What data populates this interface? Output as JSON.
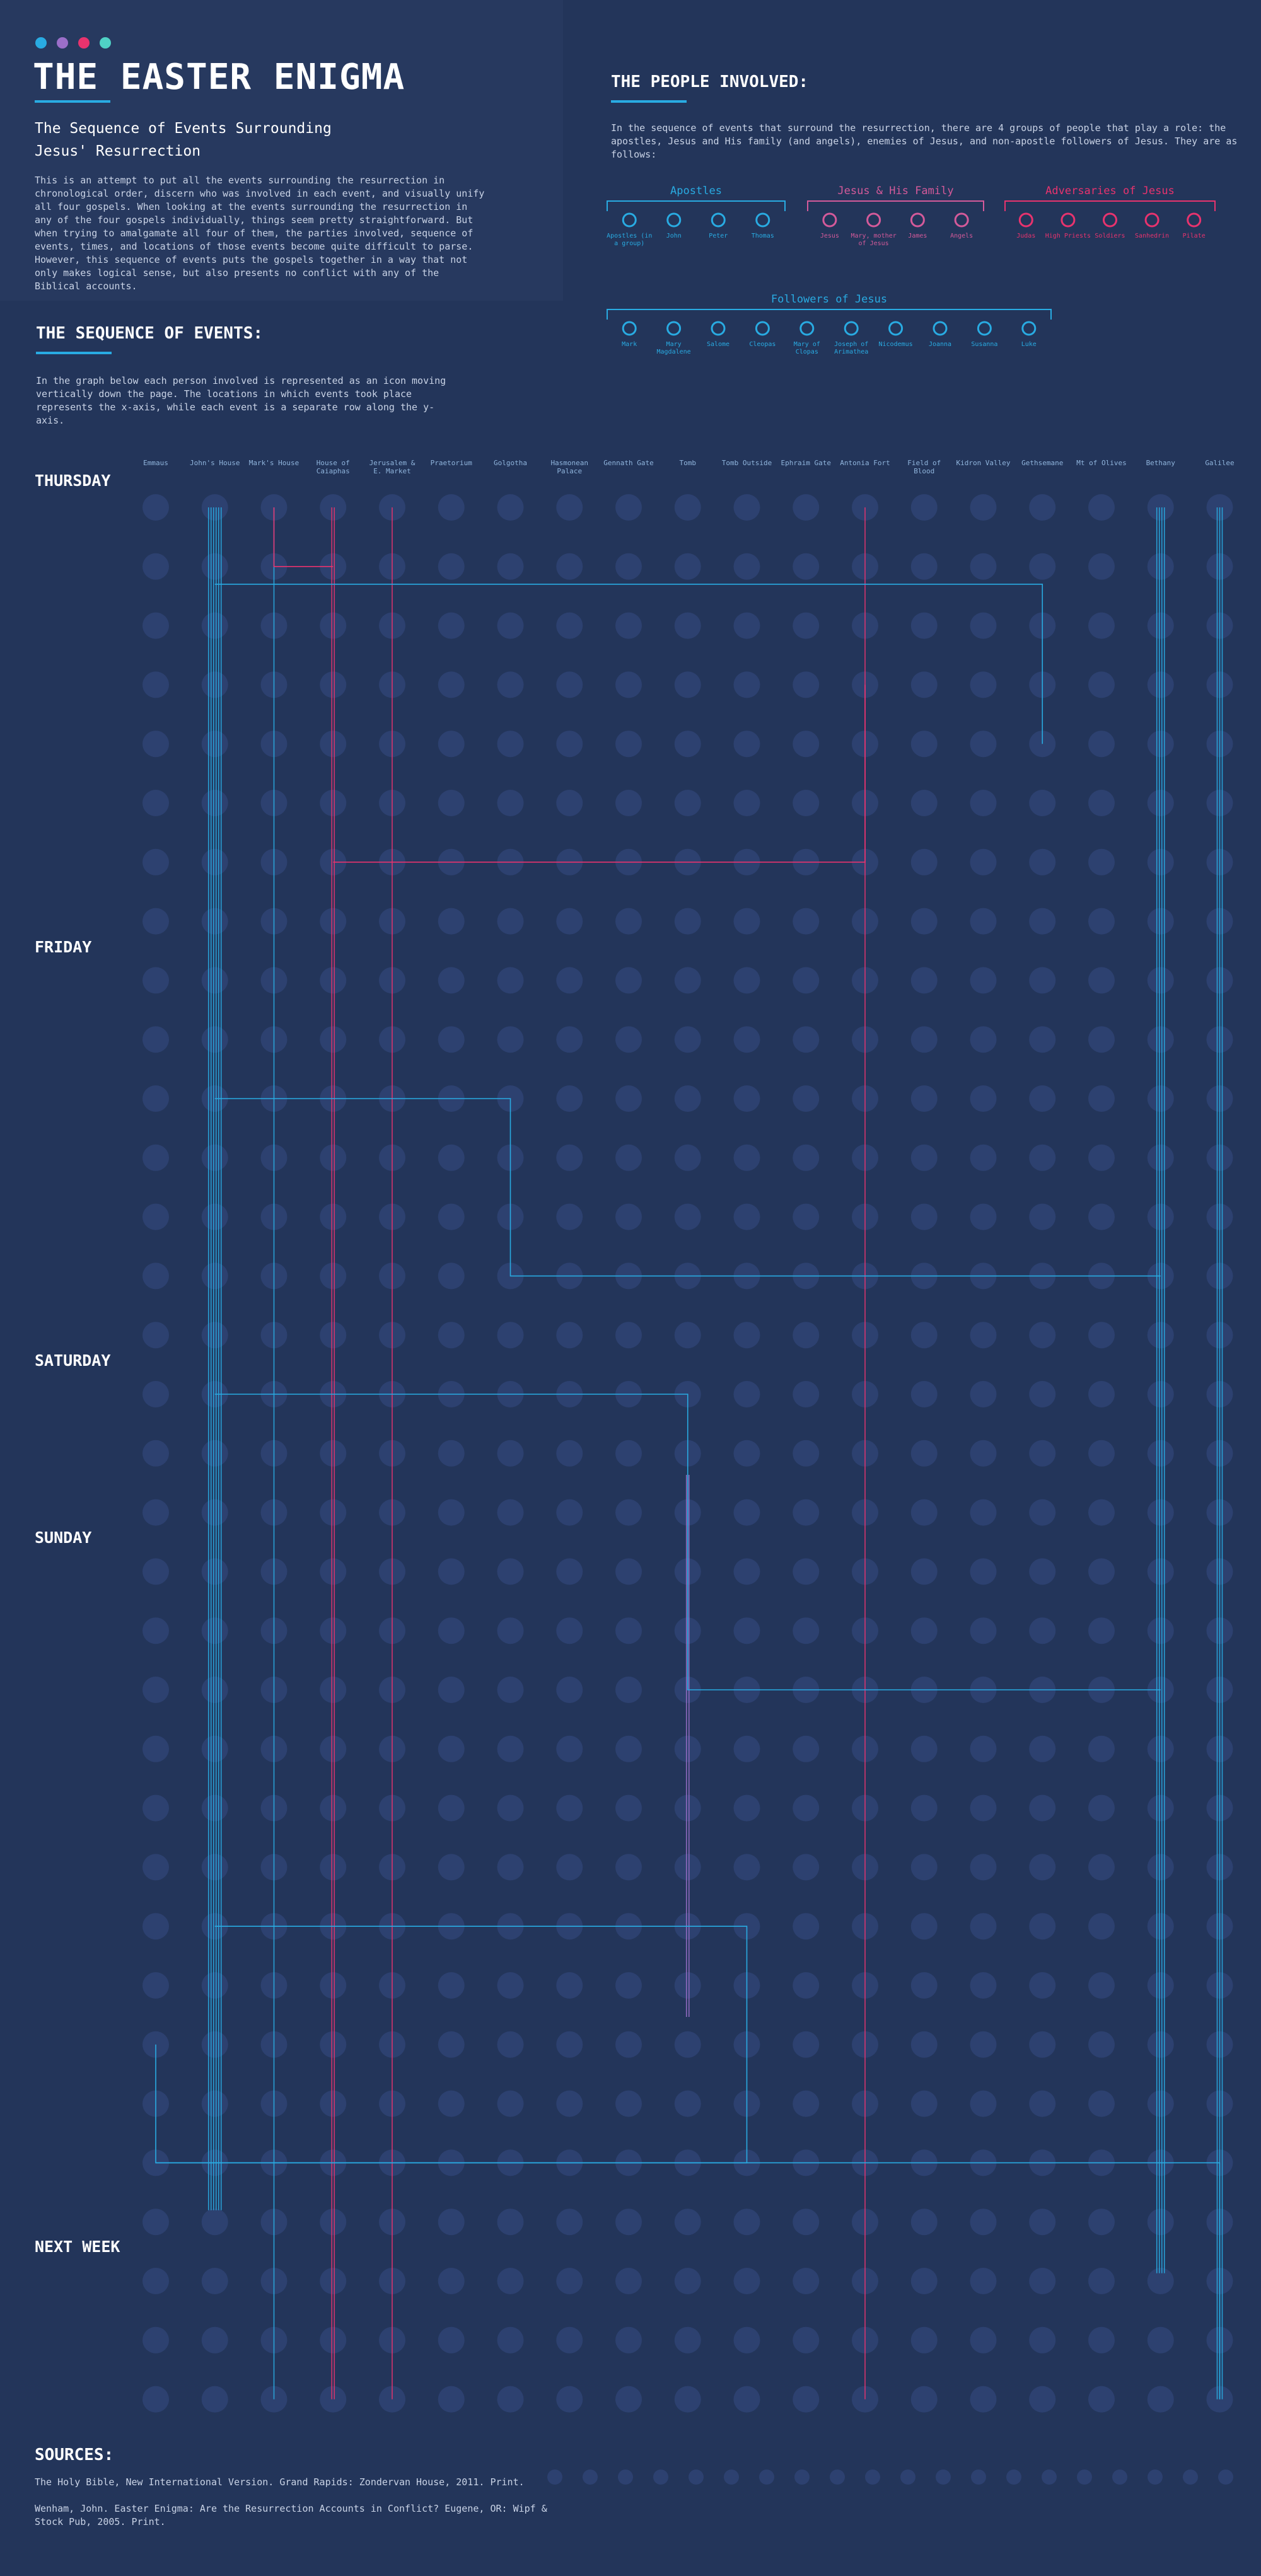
{
  "header": {
    "title": "THE EASTER ENIGMA",
    "subtitle": "The Sequence of Events Surrounding Jesus' Resurrection",
    "intro": "This is an attempt to put all the events surrounding the resurrection in chronological order, discern who was involved in each event, and visually unify all four gospels. When looking at the events surrounding the resurrection in any of the four gospels individually, things seem pretty straightforward. But when trying to amalgamate all four of them, the parties involved, sequence of events, times, and locations of those events become quite difficult to parse. However, this sequence of events puts the gospels together in a way that not only makes logical sense, but also presents no conflict with any of the Biblical accounts."
  },
  "sequence": {
    "heading": "THE SEQUENCE OF EVENTS:",
    "intro": "In the graph below each person involved is represented as an icon moving vertically down the page. The locations in which events took place represents the x-axis, while each event is a separate row along the y-axis."
  },
  "people": {
    "heading": "THE PEOPLE INVOLVED:",
    "intro": "In the sequence of events that surround the resurrection, there are 4 groups of people that play a role: the apostles, Jesus and His family (and angels), enemies of Jesus, and non-apostle followers of Jesus. They are as follows:",
    "groups": [
      {
        "name": "Apostles",
        "members": [
          "Apostles (in a group)",
          "John",
          "Peter",
          "Thomas"
        ]
      },
      {
        "name": "Jesus & His Family",
        "members": [
          "Jesus",
          "Mary, mother of Jesus",
          "James",
          "Angels"
        ]
      },
      {
        "name": "Adversaries of Jesus",
        "members": [
          "Judas",
          "High Priests",
          "Soldiers",
          "Sanhedrin",
          "Pilate"
        ]
      },
      {
        "name": "Followers of Jesus",
        "members": [
          "Mark",
          "Mary Magdalene",
          "Salome",
          "Cleopas",
          "Mary of Clopas",
          "Joseph of Arimathea",
          "Nicodemus",
          "Joanna",
          "Susanna",
          "Luke"
        ]
      }
    ]
  },
  "locations": [
    "Emmaus",
    "John's House",
    "Mark's House",
    "House of Caiaphas",
    "Jerusalem & E. Market",
    "Praetorium",
    "Golgotha",
    "Hasmonean Palace",
    "Gennath Gate",
    "Tomb",
    "Tomb Outside",
    "Ephraim Gate",
    "Antonia Fort",
    "Field of Blood",
    "Kidron Valley",
    "Gethsemane",
    "Mt of Olives",
    "Bethany",
    "Galilee"
  ],
  "days": [
    "THURSDAY",
    "FRIDAY",
    "SATURDAY",
    "SUNDAY",
    "NEXT WEEK"
  ],
  "sources": {
    "heading": "SOURCES:",
    "items": [
      "The Holy Bible, New International Version. Grand Rapids: Zondervan House, 2011. Print.",
      "Wenham, John. Easter Enigma: Are the Resurrection Accounts in Conflict? Eugene, OR: Wipf & Stock Pub, 2005. Print."
    ]
  }
}
